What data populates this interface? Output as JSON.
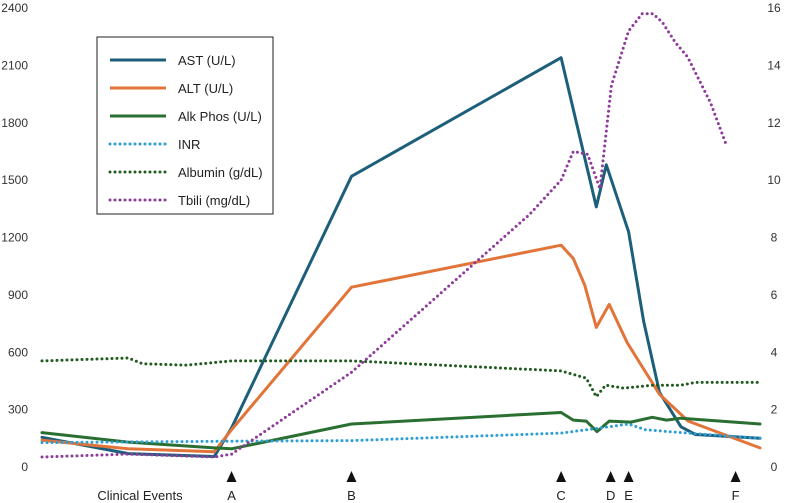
{
  "chart_data": {
    "type": "line",
    "title": "",
    "xlabel": "",
    "ylabel": "",
    "y_left": {
      "lim": [
        0,
        2400
      ],
      "ticks": [
        0,
        300,
        600,
        900,
        1200,
        1500,
        1800,
        2100,
        2400
      ]
    },
    "y_right": {
      "lim": [
        0,
        16
      ],
      "ticks": [
        0,
        2,
        4,
        6,
        8,
        10,
        12,
        14,
        16
      ]
    },
    "x_lim": [
      0,
      100
    ],
    "grid": false,
    "legend_position": "top-left",
    "events_caption": "Clinical Events",
    "events": [
      {
        "label": "A",
        "x": 26.4
      },
      {
        "label": "B",
        "x": 43.1
      },
      {
        "label": "C",
        "x": 72.3
      },
      {
        "label": "D",
        "x": 79.2
      },
      {
        "label": "E",
        "x": 81.7
      },
      {
        "label": "F",
        "x": 96.6
      }
    ],
    "series": [
      {
        "name": "AST (U/L)",
        "axis": "left",
        "color": "#1d5f7a",
        "style": "solid",
        "points": [
          [
            0,
            155
          ],
          [
            12,
            70
          ],
          [
            24,
            55
          ],
          [
            26.4,
            205
          ],
          [
            43.1,
            1520
          ],
          [
            72.3,
            2140
          ],
          [
            77.2,
            1360
          ],
          [
            78.6,
            1580
          ],
          [
            81.7,
            1230
          ],
          [
            83.8,
            760
          ],
          [
            86,
            390
          ],
          [
            89,
            210
          ],
          [
            91,
            170
          ],
          [
            100,
            150
          ]
        ]
      },
      {
        "name": "ALT (U/L)",
        "axis": "left",
        "color": "#e2743a",
        "style": "solid",
        "points": [
          [
            0,
            140
          ],
          [
            12,
            95
          ],
          [
            24,
            80
          ],
          [
            26.4,
            195
          ],
          [
            43.1,
            940
          ],
          [
            72.3,
            1160
          ],
          [
            74,
            1090
          ],
          [
            75.6,
            950
          ],
          [
            77.2,
            730
          ],
          [
            79,
            850
          ],
          [
            81.5,
            650
          ],
          [
            86,
            380
          ],
          [
            90,
            240
          ],
          [
            95,
            170
          ],
          [
            100,
            100
          ]
        ]
      },
      {
        "name": "Alk Phos (U/L)",
        "axis": "left",
        "color": "#2a6f32",
        "style": "solid",
        "points": [
          [
            0,
            180
          ],
          [
            12,
            130
          ],
          [
            24,
            100
          ],
          [
            26.4,
            95
          ],
          [
            43.1,
            225
          ],
          [
            72.3,
            285
          ],
          [
            74,
            245
          ],
          [
            75.8,
            240
          ],
          [
            77.3,
            185
          ],
          [
            79,
            240
          ],
          [
            82,
            235
          ],
          [
            85,
            260
          ],
          [
            87,
            245
          ],
          [
            89,
            255
          ],
          [
            100,
            225
          ]
        ]
      },
      {
        "name": "INR",
        "axis": "right",
        "color": "#2b9ed6",
        "style": "dotted",
        "points": [
          [
            0,
            0.85
          ],
          [
            26.4,
            0.9
          ],
          [
            43.1,
            0.92
          ],
          [
            72.3,
            1.18
          ],
          [
            79,
            1.4
          ],
          [
            81.7,
            1.5
          ],
          [
            84,
            1.3
          ],
          [
            89,
            1.2
          ],
          [
            100,
            1.0
          ]
        ]
      },
      {
        "name": "Albumin (g/dL)",
        "axis": "right",
        "color": "#1f5a1f",
        "style": "dotted",
        "points": [
          [
            0,
            3.7
          ],
          [
            12,
            3.8
          ],
          [
            14,
            3.6
          ],
          [
            20,
            3.55
          ],
          [
            26.4,
            3.7
          ],
          [
            43.1,
            3.7
          ],
          [
            72.3,
            3.35
          ],
          [
            75.8,
            3.1
          ],
          [
            77.2,
            2.45
          ],
          [
            78.5,
            2.85
          ],
          [
            81,
            2.75
          ],
          [
            85,
            2.85
          ],
          [
            89,
            2.85
          ],
          [
            91,
            2.95
          ],
          [
            100,
            2.95
          ]
        ]
      },
      {
        "name": "Tbili (mg/dL)",
        "axis": "right",
        "color": "#8e3a9a",
        "style": "dotted",
        "points": [
          [
            0,
            0.35
          ],
          [
            12,
            0.45
          ],
          [
            24,
            0.35
          ],
          [
            26.4,
            0.45
          ],
          [
            43.1,
            3.3
          ],
          [
            67.9,
            8.8
          ],
          [
            72.3,
            10.0
          ],
          [
            74,
            11.0
          ],
          [
            76,
            10.9
          ],
          [
            77.7,
            9.7
          ],
          [
            79.3,
            13.3
          ],
          [
            81.7,
            15.2
          ],
          [
            83.6,
            15.8
          ],
          [
            85.1,
            15.8
          ],
          [
            86.4,
            15.5
          ],
          [
            88.2,
            14.8
          ],
          [
            89.9,
            14.3
          ],
          [
            93.1,
            12.7
          ],
          [
            95.2,
            11.3
          ]
        ]
      }
    ]
  }
}
